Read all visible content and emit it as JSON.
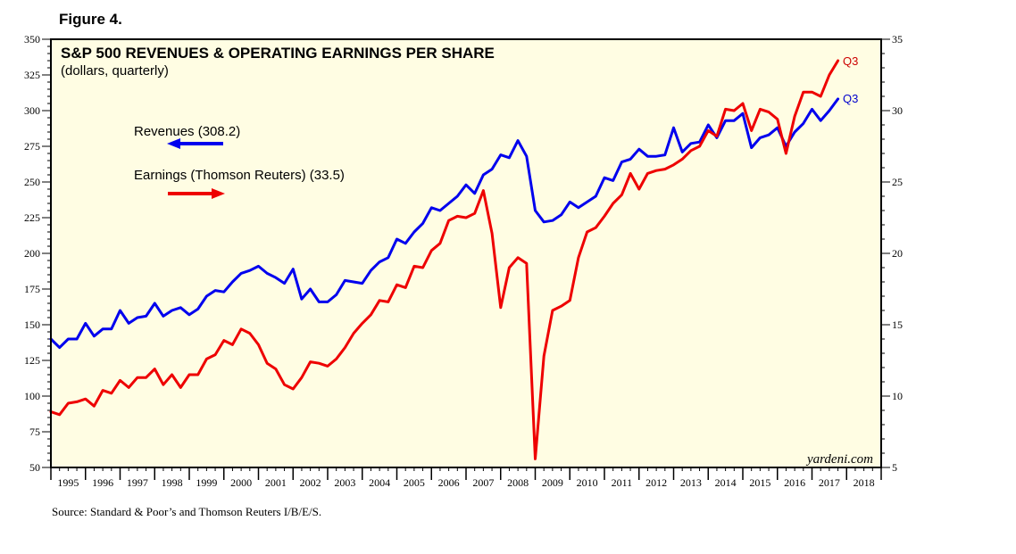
{
  "figure_label": "Figure 4.",
  "source": "Source: Standard & Poor’s and Thomson Reuters I/B/E/S.",
  "credit": "yardeni.com",
  "colors": {
    "revenues": "#0000ee",
    "earnings": "#ee0000",
    "plot_bg": "#fffde3",
    "end_earnings": "#cc0000",
    "end_revenues": "#0000cc"
  },
  "chart_data": {
    "type": "line",
    "title": "S&P 500 REVENUES & OPERATING EARNINGS PER SHARE",
    "subtitle": "(dollars, quarterly)",
    "x_labels": [
      "1995",
      "1996",
      "1997",
      "1998",
      "1999",
      "2000",
      "2001",
      "2002",
      "2003",
      "2004",
      "2005",
      "2006",
      "2007",
      "2008",
      "2009",
      "2010",
      "2011",
      "2012",
      "2013",
      "2014",
      "2015",
      "2016",
      "2017",
      "2018"
    ],
    "x_range": [
      1994.75,
      2018.75
    ],
    "left_axis": {
      "min": 50,
      "max": 350,
      "ticks": [
        "50",
        "75",
        "100",
        "125",
        "150",
        "175",
        "200",
        "225",
        "250",
        "275",
        "300",
        "325",
        "350"
      ]
    },
    "right_axis": {
      "min": 5,
      "max": 35,
      "ticks": [
        "5",
        "10",
        "15",
        "20",
        "25",
        "30",
        "35"
      ]
    },
    "legend": [
      {
        "label": "Revenues (308.2)",
        "direction": "left",
        "series": "revenues"
      },
      {
        "label": "Earnings (Thomson Reuters) (33.5)",
        "direction": "right",
        "series": "earnings"
      }
    ],
    "series": [
      {
        "name": "Revenues",
        "axis": "left",
        "end_label": "Q3",
        "start": 1994.75,
        "step": 0.25,
        "values": [
          140,
          134,
          140,
          140,
          151,
          142,
          147,
          147,
          160,
          151,
          155,
          156,
          165,
          156,
          160,
          162,
          157,
          161,
          170,
          174,
          173,
          180,
          186,
          188,
          191,
          186,
          183,
          179,
          189,
          168,
          175,
          166,
          166,
          171,
          181,
          180,
          179,
          188,
          194,
          197,
          210,
          207,
          215,
          221,
          232,
          230,
          235,
          240,
          248,
          242,
          255,
          259,
          269,
          267,
          279,
          268,
          230,
          222,
          223,
          227,
          236,
          232,
          236,
          240,
          253,
          251,
          264,
          266,
          273,
          268,
          268,
          269,
          288,
          271,
          277,
          278,
          290,
          281,
          293,
          293,
          298,
          274,
          281,
          283,
          288,
          275,
          285,
          291,
          301,
          293,
          300,
          308.2
        ]
      },
      {
        "name": "Earnings",
        "axis": "right",
        "end_label": "Q3",
        "start": 1994.75,
        "step": 0.25,
        "values": [
          8.9,
          8.7,
          9.5,
          9.6,
          9.8,
          9.3,
          10.4,
          10.2,
          11.1,
          10.6,
          11.3,
          11.3,
          11.9,
          10.8,
          11.5,
          10.6,
          11.5,
          11.5,
          12.6,
          12.9,
          13.9,
          13.6,
          14.7,
          14.4,
          13.6,
          12.3,
          11.9,
          10.8,
          10.5,
          11.3,
          12.4,
          12.3,
          12.1,
          12.6,
          13.4,
          14.4,
          15.1,
          15.7,
          16.7,
          16.6,
          17.8,
          17.6,
          19.1,
          19.0,
          20.2,
          20.7,
          22.3,
          22.6,
          22.5,
          22.8,
          24.4,
          21.4,
          16.2,
          19.0,
          19.7,
          19.3,
          5.6,
          12.8,
          16.0,
          16.3,
          16.7,
          19.7,
          21.5,
          21.8,
          22.6,
          23.5,
          24.1,
          25.6,
          24.5,
          25.6,
          25.8,
          25.9,
          26.2,
          26.6,
          27.2,
          27.5,
          28.6,
          28.2,
          30.1,
          30.0,
          30.5,
          28.6,
          30.1,
          29.9,
          29.4,
          27.0,
          29.6,
          31.3,
          31.3,
          31.0,
          32.5,
          33.5
        ]
      }
    ]
  }
}
